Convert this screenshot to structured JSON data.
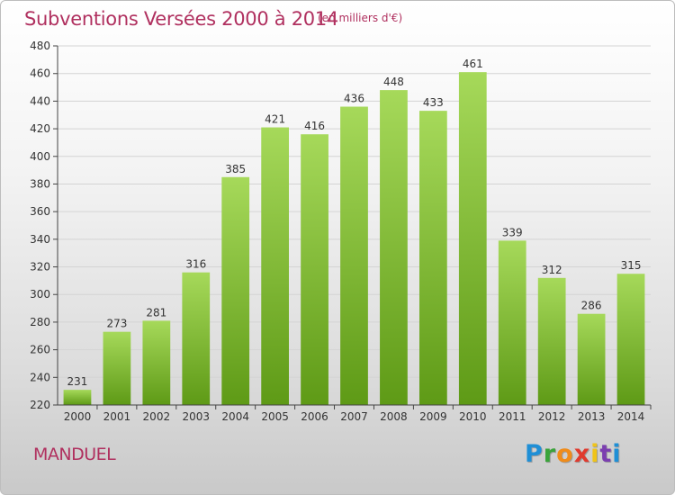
{
  "header": {
    "title": "Subventions Versées 2000 à 2014",
    "subtitle": "(en milliers d'€)"
  },
  "footer": {
    "commune": "MANDUEL",
    "logo_text": "Proxiti"
  },
  "colors": {
    "title": "#b0305f",
    "bar_top": "#a6d95a",
    "bar_bottom": "#5e9a16",
    "grid": "#d4d4d4",
    "axis": "#444444"
  },
  "chart_data": {
    "type": "bar",
    "title": "Subventions Versées 2000 à 2014",
    "subtitle": "(en milliers d'€)",
    "categories": [
      "2000",
      "2001",
      "2002",
      "2003",
      "2004",
      "2005",
      "2006",
      "2007",
      "2008",
      "2009",
      "2010",
      "2011",
      "2012",
      "2013",
      "2014"
    ],
    "values": [
      231,
      273,
      281,
      316,
      385,
      421,
      416,
      436,
      448,
      433,
      461,
      339,
      312,
      286,
      315
    ],
    "ylim": [
      220,
      480
    ],
    "yticks": [
      220,
      240,
      260,
      280,
      300,
      320,
      340,
      360,
      380,
      400,
      420,
      440,
      460,
      480
    ],
    "grid": true,
    "legend": "none"
  }
}
